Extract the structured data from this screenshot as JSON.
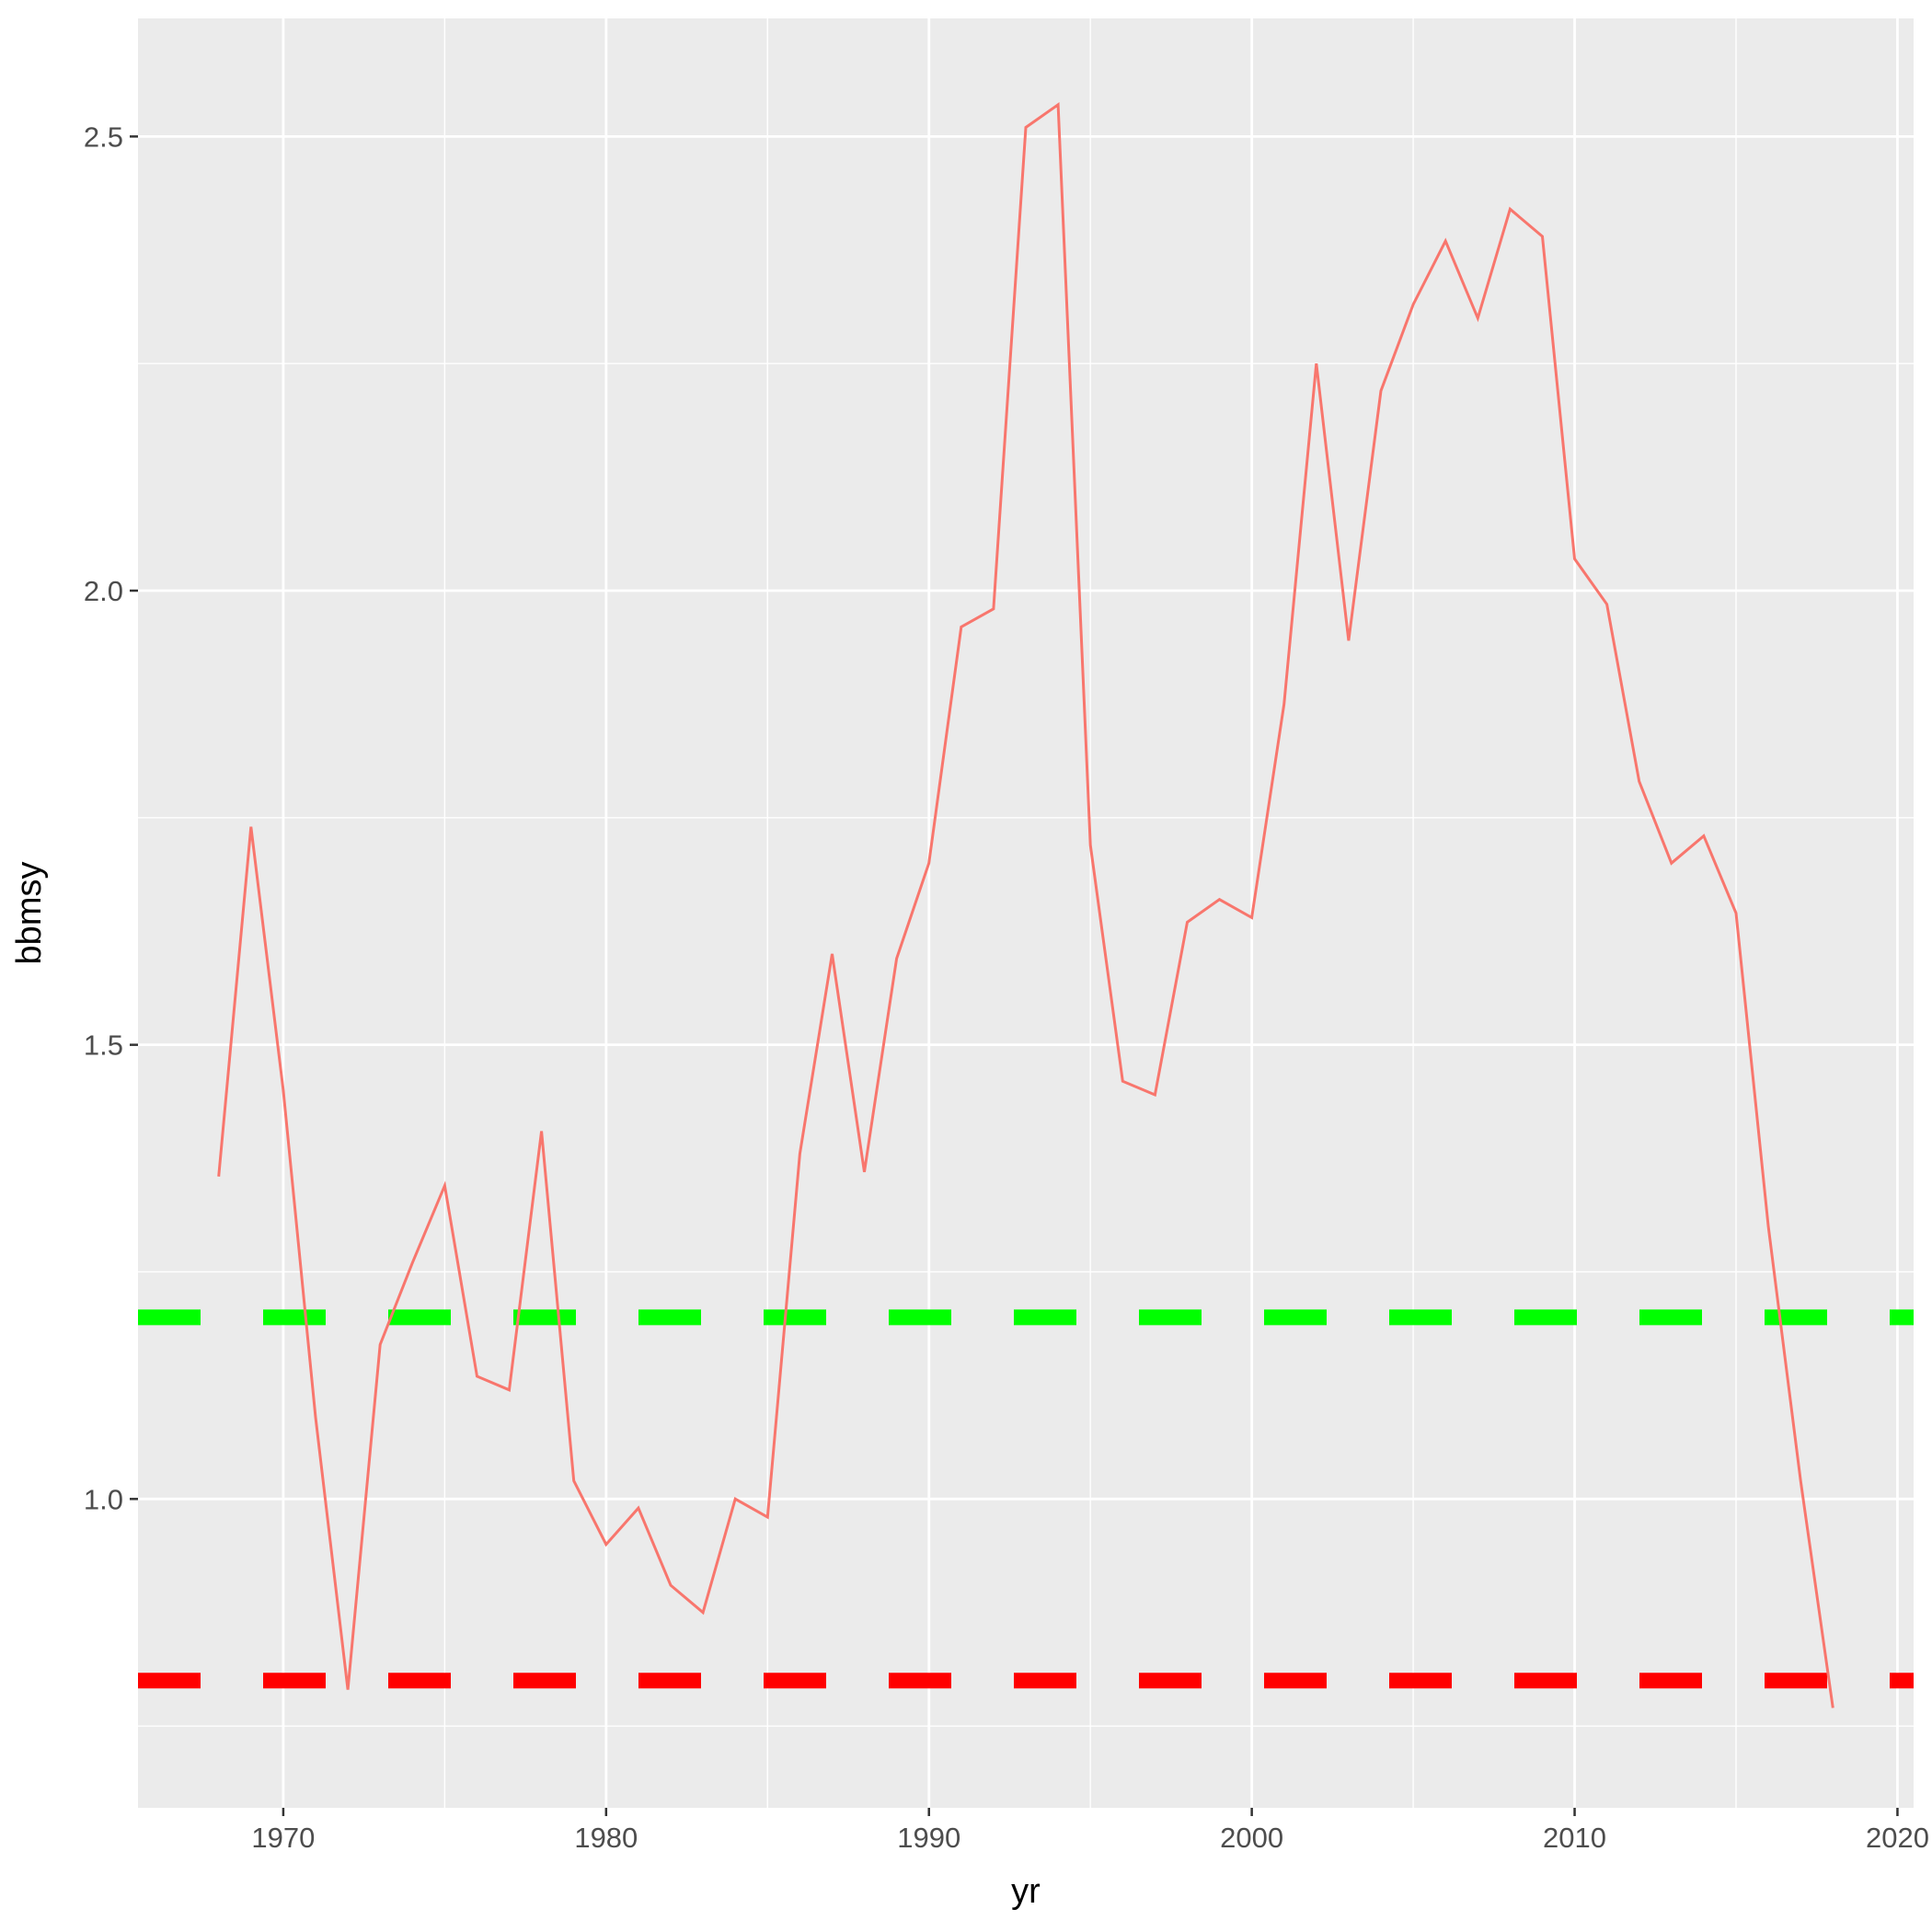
{
  "chart_data": {
    "type": "line",
    "xlabel": "yr",
    "ylabel": "bbmsy",
    "xlim": [
      1965.5,
      2020.5
    ],
    "ylim": [
      0.66,
      2.63
    ],
    "x_ticks": [
      1970,
      1980,
      1990,
      2000,
      2010,
      2020
    ],
    "x_tick_labels": [
      "1970",
      "1980",
      "1990",
      "2000",
      "2010",
      "2020"
    ],
    "y_ticks": [
      1.0,
      1.5,
      2.0,
      2.5
    ],
    "y_tick_labels": [
      "1.0",
      "1.5",
      "2.0",
      "2.5"
    ],
    "y_minor_ticks": [
      0.75,
      1.25,
      1.75,
      2.25
    ],
    "grid": true,
    "legend": "none",
    "colors": {
      "panel": "#ebebeb",
      "grid": "#ffffff",
      "series": "#f8766d",
      "upper_ref": "#00ff00",
      "lower_ref": "#ff0000"
    },
    "series": [
      {
        "x": [
          1968,
          1969,
          1970,
          1971,
          1972,
          1973,
          1974,
          1975,
          1976,
          1977,
          1978,
          1979,
          1980,
          1981,
          1982,
          1983,
          1984,
          1985,
          1986,
          1987,
          1988,
          1989,
          1990,
          1991,
          1992,
          1993,
          1994,
          1995,
          1996,
          1997,
          1998,
          1999,
          2000,
          2001,
          2002,
          2003,
          2004,
          2005,
          2006,
          2007,
          2008,
          2009,
          2010,
          2011,
          2012,
          2013,
          2014,
          2015,
          2016,
          2017,
          2018
        ],
        "y": [
          1.355,
          1.74,
          1.45,
          1.09,
          0.79,
          1.17,
          1.26,
          1.345,
          1.135,
          1.12,
          1.405,
          1.02,
          0.95,
          0.99,
          0.905,
          0.875,
          1.0,
          0.98,
          1.38,
          1.6,
          1.36,
          1.595,
          1.7,
          1.96,
          1.98,
          2.51,
          2.535,
          1.72,
          1.46,
          1.445,
          1.635,
          1.66,
          1.64,
          1.875,
          2.25,
          1.945,
          2.22,
          2.315,
          2.385,
          2.3,
          2.42,
          2.39,
          2.035,
          1.985,
          1.79,
          1.7,
          1.73,
          1.645,
          1.3,
          1.02,
          0.77
        ]
      }
    ],
    "reference_lines": [
      {
        "y": 1.2,
        "color": "#00ff00",
        "style": "dashed"
      },
      {
        "y": 0.8,
        "color": "#ff0000",
        "style": "dashed"
      }
    ]
  }
}
